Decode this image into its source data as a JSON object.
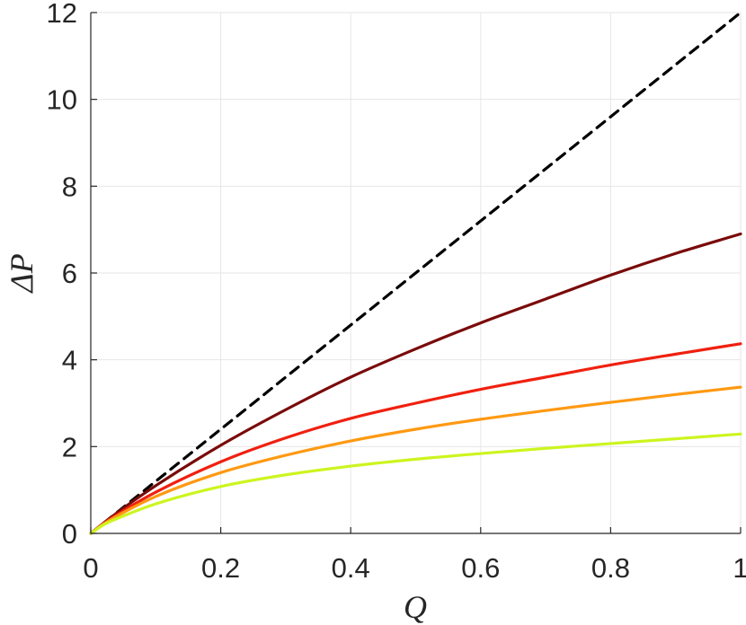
{
  "chart_data": {
    "type": "line",
    "title": "",
    "xlabel": "Q",
    "ylabel": "ΔP",
    "xlim": [
      0,
      1
    ],
    "ylim": [
      0,
      12
    ],
    "xticks": [
      0,
      0.2,
      0.4,
      0.6,
      0.8,
      1
    ],
    "xtick_labels": [
      "0",
      "0.2",
      "0.4",
      "0.6",
      "0.8",
      "1"
    ],
    "yticks": [
      0,
      2,
      4,
      6,
      8,
      10,
      12
    ],
    "ytick_labels": [
      "0",
      "2",
      "4",
      "6",
      "8",
      "10",
      "12"
    ],
    "grid": true,
    "legend": "none",
    "series": [
      {
        "color": "#000000",
        "dashed": true,
        "x": [
          0,
          1
        ],
        "y": [
          0,
          12
        ]
      },
      {
        "color": "#7a0a0a",
        "dashed": false,
        "x": [
          0,
          0.02,
          0.05,
          0.1,
          0.2,
          0.3,
          0.4,
          0.5,
          0.6,
          0.7,
          0.8,
          0.9,
          1.0
        ],
        "y": [
          0,
          0.24,
          0.58,
          1.1,
          2.03,
          2.85,
          3.6,
          4.25,
          4.85,
          5.4,
          5.95,
          6.45,
          6.9
        ]
      },
      {
        "color": "#f0200f",
        "dashed": false,
        "x": [
          0,
          0.02,
          0.05,
          0.1,
          0.2,
          0.3,
          0.4,
          0.5,
          0.6,
          0.7,
          0.8,
          0.9,
          1.0
        ],
        "y": [
          0,
          0.23,
          0.52,
          0.95,
          1.65,
          2.2,
          2.65,
          3.0,
          3.32,
          3.6,
          3.88,
          4.13,
          4.37
        ]
      },
      {
        "color": "#ff9912",
        "dashed": false,
        "x": [
          0,
          0.02,
          0.05,
          0.1,
          0.2,
          0.3,
          0.4,
          0.5,
          0.6,
          0.7,
          0.8,
          0.9,
          1.0
        ],
        "y": [
          0,
          0.22,
          0.48,
          0.85,
          1.4,
          1.8,
          2.13,
          2.4,
          2.63,
          2.83,
          3.02,
          3.2,
          3.37
        ]
      },
      {
        "color": "#ccf51f",
        "dashed": false,
        "x": [
          0,
          0.02,
          0.05,
          0.1,
          0.2,
          0.3,
          0.4,
          0.5,
          0.6,
          0.7,
          0.8,
          0.9,
          1.0
        ],
        "y": [
          0,
          0.2,
          0.4,
          0.68,
          1.08,
          1.35,
          1.55,
          1.71,
          1.84,
          1.96,
          2.07,
          2.18,
          2.29
        ]
      }
    ]
  }
}
